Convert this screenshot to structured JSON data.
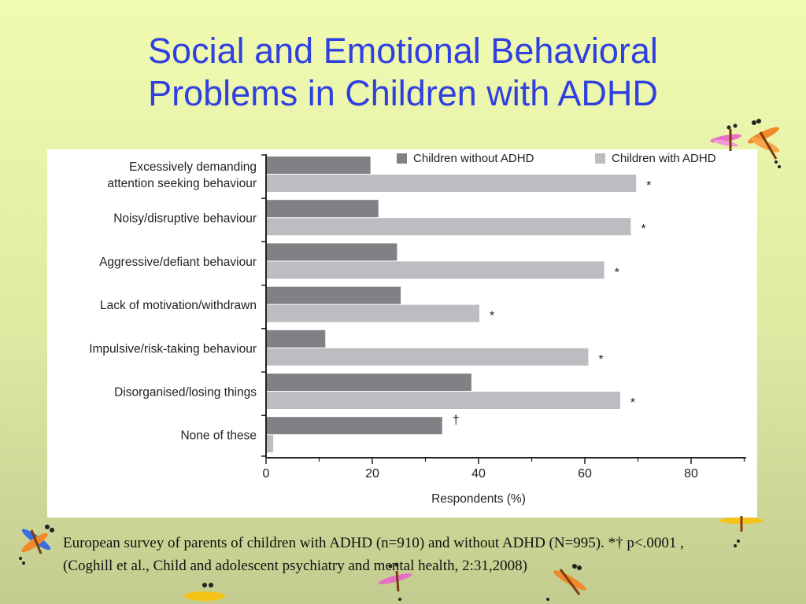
{
  "slide": {
    "title_line1": "Social and Emotional Behavioral",
    "title_line2": "Problems in Children with ADHD",
    "caption": "European survey of parents of children with ADHD (n=910) and without ADHD (N=995). *† p<.0001 , (Coghill et al., Child and adolescent psychiatry and mental health, 2:31,2008)",
    "title_color": "#2f3fe0"
  },
  "chart_data": {
    "type": "bar",
    "orientation": "horizontal",
    "categories": [
      [
        "Excessively demanding",
        "attention seeking behaviour"
      ],
      [
        "Noisy/disruptive behaviour"
      ],
      [
        "Aggressive/defiant behaviour"
      ],
      [
        "Lack of motivation/withdrawn"
      ],
      [
        "Impulsive/risk-taking behaviour"
      ],
      [
        "Disorganised/losing things"
      ],
      [
        "None of these"
      ]
    ],
    "series": [
      {
        "name": "Children without ADHD",
        "color": "#818185",
        "values": [
          19.5,
          21,
          24.5,
          25.2,
          11,
          38.5,
          33
        ]
      },
      {
        "name": "Children with ADHD",
        "color": "#bcbdc1",
        "values": [
          69.5,
          68.5,
          63.5,
          40,
          60.5,
          66.5,
          1.2
        ]
      }
    ],
    "markers": [
      "*",
      "*",
      "*",
      "*",
      "*",
      "*",
      "†"
    ],
    "marker_series": [
      1,
      1,
      1,
      1,
      1,
      1,
      0
    ],
    "xlabel": "Respondents (%)",
    "xlim": [
      0,
      90
    ],
    "xticks": [
      0,
      20,
      40,
      60,
      80
    ],
    "legend_position": "top-right",
    "grid": false
  }
}
